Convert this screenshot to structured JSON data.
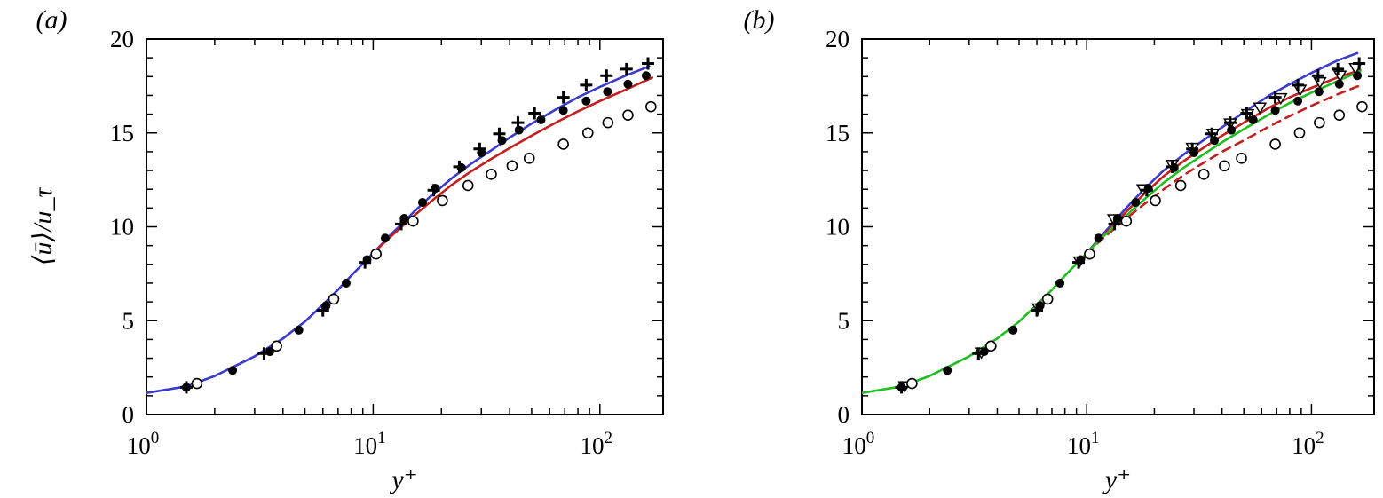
{
  "chart_data": [
    {
      "type": "line",
      "panel_label": "(a)",
      "xlabel": "y⁺",
      "ylabel": "⟨ū⟩/u_τ",
      "xscale": "log",
      "xlim": [
        1,
        190
      ],
      "ylim": [
        0,
        20
      ],
      "xticks": [
        {
          "value": 1,
          "base": "10",
          "exp": "0"
        },
        {
          "value": 10,
          "base": "10",
          "exp": "1"
        },
        {
          "value": 100,
          "base": "10",
          "exp": "2"
        }
      ],
      "yticks": [
        0,
        5,
        10,
        15,
        20
      ],
      "grid": false,
      "series": [
        {
          "style": "solid-line",
          "color": "#3a3acc",
          "x": [
            1,
            1.5,
            2,
            3,
            4,
            5,
            6,
            7,
            8,
            10,
            12,
            15,
            18,
            22,
            27,
            33,
            40,
            50,
            65,
            80,
            100,
            130,
            165
          ],
          "y": [
            1.15,
            1.5,
            2.05,
            3.1,
            4.05,
            4.95,
            5.85,
            6.65,
            7.4,
            8.6,
            9.6,
            10.75,
            11.65,
            12.55,
            13.35,
            14.05,
            14.75,
            15.5,
            16.3,
            16.9,
            17.45,
            18.05,
            18.55
          ]
        },
        {
          "style": "solid-line",
          "color": "#c41e1e",
          "x": [
            10,
            12,
            15,
            18,
            22,
            27,
            33,
            40,
            50,
            65,
            80,
            100,
            130,
            170
          ],
          "y": [
            8.6,
            9.5,
            10.55,
            11.35,
            12.2,
            12.95,
            13.6,
            14.2,
            14.85,
            15.6,
            16.15,
            16.7,
            17.3,
            17.95
          ]
        },
        {
          "style": "plus",
          "color": "#000000",
          "x": [
            1.5,
            3.3,
            6,
            9.2,
            13.3,
            18.5,
            24,
            29.5,
            36,
            43.5,
            51.5,
            69,
            87,
            107,
            131,
            163
          ],
          "y": [
            1.45,
            3.25,
            5.55,
            8.1,
            10.15,
            11.95,
            13.2,
            14.15,
            14.95,
            15.55,
            16.05,
            16.9,
            17.55,
            18.05,
            18.4,
            18.7
          ]
        },
        {
          "style": "filled-circle",
          "color": "#000000",
          "x": [
            1.5,
            2.4,
            3.5,
            4.7,
            6.2,
            7.6,
            9.4,
            11.3,
            13.7,
            16.5,
            18.8,
            24.5,
            30,
            37,
            44,
            55,
            69,
            87,
            108,
            133,
            160
          ],
          "y": [
            1.45,
            2.35,
            3.35,
            4.5,
            5.8,
            7.0,
            8.25,
            9.4,
            10.45,
            11.3,
            12.05,
            13.15,
            13.95,
            14.6,
            15.15,
            15.7,
            16.2,
            16.7,
            17.2,
            17.6,
            18.05
          ]
        },
        {
          "style": "open-circle",
          "color": "#000000",
          "x": [
            1.67,
            3.75,
            6.7,
            10.3,
            15,
            20.2,
            26.2,
            33.2,
            41,
            48.8,
            69,
            88.5,
            108.5,
            133,
            168
          ],
          "y": [
            1.65,
            3.65,
            6.15,
            8.55,
            10.3,
            11.4,
            12.2,
            12.8,
            13.25,
            13.65,
            14.4,
            15.0,
            15.55,
            15.95,
            16.4
          ]
        }
      ]
    },
    {
      "type": "line",
      "panel_label": "(b)",
      "xlabel": "y⁺",
      "ylabel": "",
      "xscale": "log",
      "xlim": [
        1,
        190
      ],
      "ylim": [
        0,
        20
      ],
      "xticks": [
        {
          "value": 1,
          "base": "10",
          "exp": "0"
        },
        {
          "value": 10,
          "base": "10",
          "exp": "1"
        },
        {
          "value": 100,
          "base": "10",
          "exp": "2"
        }
      ],
      "yticks": [
        0,
        5,
        10,
        15,
        20
      ],
      "grid": false,
      "series": [
        {
          "style": "solid-line",
          "color": "#3a3acc",
          "x": [
            10,
            12,
            15,
            18,
            22,
            27,
            33,
            40,
            50,
            65,
            80,
            100,
            130,
            160
          ],
          "y": [
            8.6,
            9.7,
            11.0,
            12.0,
            13.0,
            13.85,
            14.6,
            15.3,
            16.1,
            17.0,
            17.6,
            18.2,
            18.85,
            19.25
          ]
        },
        {
          "style": "solid-line",
          "color": "#c41e1e",
          "x": [
            10,
            12,
            15,
            18,
            22,
            27,
            33,
            40,
            50,
            65,
            80,
            100,
            130,
            165
          ],
          "y": [
            8.6,
            9.6,
            10.8,
            11.75,
            12.7,
            13.5,
            14.2,
            14.85,
            15.55,
            16.35,
            16.9,
            17.4,
            17.95,
            18.35
          ]
        },
        {
          "style": "dashed-line",
          "color": "#c41e1e",
          "x": [
            10,
            12,
            15,
            18,
            22,
            27,
            33,
            40,
            50,
            65,
            80,
            100,
            130,
            170
          ],
          "y": [
            8.6,
            9.45,
            10.45,
            11.2,
            12.0,
            12.75,
            13.4,
            14.0,
            14.6,
            15.35,
            15.9,
            16.45,
            17.05,
            17.6
          ]
        },
        {
          "style": "solid-line",
          "color": "#1fbf1f",
          "x": [
            1,
            1.5,
            2,
            3,
            4,
            5,
            6,
            7,
            8,
            10,
            12,
            15,
            18,
            22,
            27,
            33,
            40,
            50,
            65,
            80,
            100,
            130,
            165
          ],
          "y": [
            1.15,
            1.5,
            2.05,
            3.1,
            4.05,
            4.95,
            5.85,
            6.65,
            7.4,
            8.6,
            9.55,
            10.6,
            11.45,
            12.35,
            13.15,
            13.85,
            14.5,
            15.2,
            16.0,
            16.6,
            17.15,
            17.75,
            18.3
          ]
        },
        {
          "style": "open-triangle-down",
          "color": "#000000",
          "x": [
            1.55,
            3.4,
            6.1,
            9.3,
            13.2,
            17.8,
            24,
            29.5,
            36.5,
            43.5,
            52,
            59,
            73,
            89,
            109,
            134,
            157
          ],
          "y": [
            1.5,
            3.3,
            5.65,
            8.15,
            10.4,
            12.0,
            13.3,
            14.2,
            14.95,
            15.5,
            16.0,
            16.35,
            16.85,
            17.3,
            17.7,
            18.05,
            18.45
          ]
        },
        {
          "style": "plus",
          "color": "#000000",
          "x": [
            1.5,
            3.3,
            6,
            9.2,
            13.3,
            18.5,
            24,
            29.5,
            36,
            43.5,
            51.5,
            69,
            87,
            107,
            131,
            163
          ],
          "y": [
            1.45,
            3.25,
            5.55,
            8.1,
            10.15,
            11.95,
            13.2,
            14.15,
            14.95,
            15.55,
            16.05,
            16.9,
            17.55,
            18.05,
            18.4,
            18.7
          ]
        },
        {
          "style": "filled-circle",
          "color": "#000000",
          "x": [
            1.5,
            2.4,
            3.5,
            4.7,
            6.2,
            7.6,
            9.4,
            11.3,
            13.7,
            16.5,
            18.8,
            24.5,
            30,
            37,
            44,
            55,
            69,
            87,
            108,
            133,
            160
          ],
          "y": [
            1.45,
            2.35,
            3.35,
            4.5,
            5.8,
            7.0,
            8.25,
            9.4,
            10.45,
            11.3,
            12.05,
            13.15,
            13.95,
            14.6,
            15.15,
            15.7,
            16.2,
            16.7,
            17.2,
            17.6,
            18.05
          ]
        },
        {
          "style": "open-circle",
          "color": "#000000",
          "x": [
            1.67,
            3.75,
            6.7,
            10.3,
            15,
            20.2,
            26.2,
            33.2,
            41,
            48.8,
            69,
            88.5,
            108.5,
            133,
            168
          ],
          "y": [
            1.65,
            3.65,
            6.15,
            8.55,
            10.3,
            11.4,
            12.2,
            12.8,
            13.25,
            13.65,
            14.4,
            15.0,
            15.55,
            15.95,
            16.4
          ]
        }
      ]
    }
  ]
}
